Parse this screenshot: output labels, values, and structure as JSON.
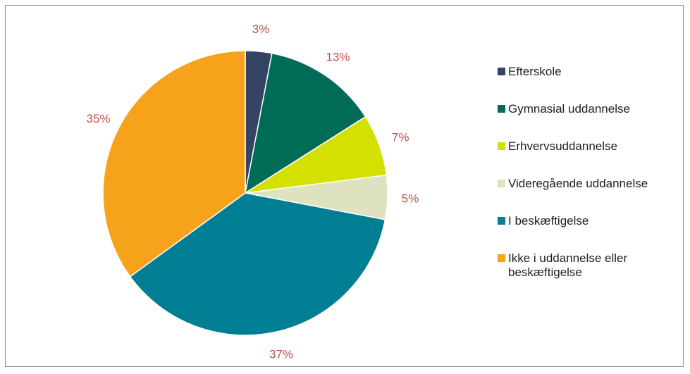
{
  "chart_data": {
    "type": "pie",
    "title": "",
    "start_angle_deg": 0,
    "direction": "clockwise",
    "label_color": "#c0504d",
    "slices": [
      {
        "label": "Efterskole",
        "value": 3,
        "display": "3%",
        "color": "#344563"
      },
      {
        "label": "Gymnasial uddannelse",
        "value": 13,
        "display": "13%",
        "color": "#006b57"
      },
      {
        "label": "Erhvervsuddannelse",
        "value": 7,
        "display": "7%",
        "color": "#d4e000"
      },
      {
        "label": "Videregående uddannelse",
        "value": 5,
        "display": "5%",
        "color": "#dfe2c0"
      },
      {
        "label": "I beskæftigelse",
        "value": 37,
        "display": "37%",
        "color": "#007e93"
      },
      {
        "label": "Ikke i uddannelse eller beskæftigelse",
        "value": 35,
        "display": "35%",
        "color": "#f7a21b"
      }
    ],
    "legend": {
      "placement": "right",
      "entries": [
        {
          "label_line1": "Efterskole",
          "label_line2": ""
        },
        {
          "label_line1": "Gymnasial uddannelse",
          "label_line2": ""
        },
        {
          "label_line1": "Erhvervsuddannelse",
          "label_line2": ""
        },
        {
          "label_line1": "Videregående uddannelse",
          "label_line2": ""
        },
        {
          "label_line1": "I beskæftigelse",
          "label_line2": ""
        },
        {
          "label_line1": "Ikke i uddannelse eller",
          "label_line2": "beskæftigelse"
        }
      ]
    }
  }
}
